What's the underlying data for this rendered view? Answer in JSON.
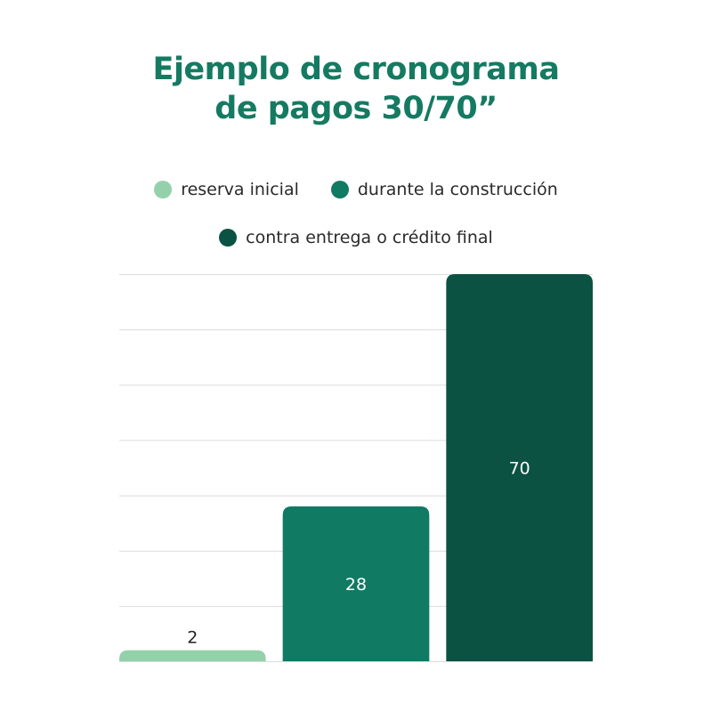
{
  "chart_data": {
    "type": "bar",
    "title_line1": "Ejemplo de cronograma",
    "title_line2": "de pagos 30/70”",
    "xlabel": "",
    "ylabel": "",
    "ylim": [
      0,
      70
    ],
    "grid_ticks": [
      0,
      10,
      20,
      30,
      40,
      50,
      60,
      70
    ],
    "grid": true,
    "legend_position": "top-center",
    "categories": [
      "reserva inicial",
      "durante la construcción",
      "contra entrega o crédito final"
    ],
    "values": [
      2,
      28,
      70
    ],
    "value_labels": [
      "2",
      "28",
      "70"
    ],
    "colors": [
      "#93d1ab",
      "#107a63",
      "#0b5243"
    ],
    "label_colors": [
      "#222222",
      "#ffffff",
      "#ffffff"
    ]
  }
}
